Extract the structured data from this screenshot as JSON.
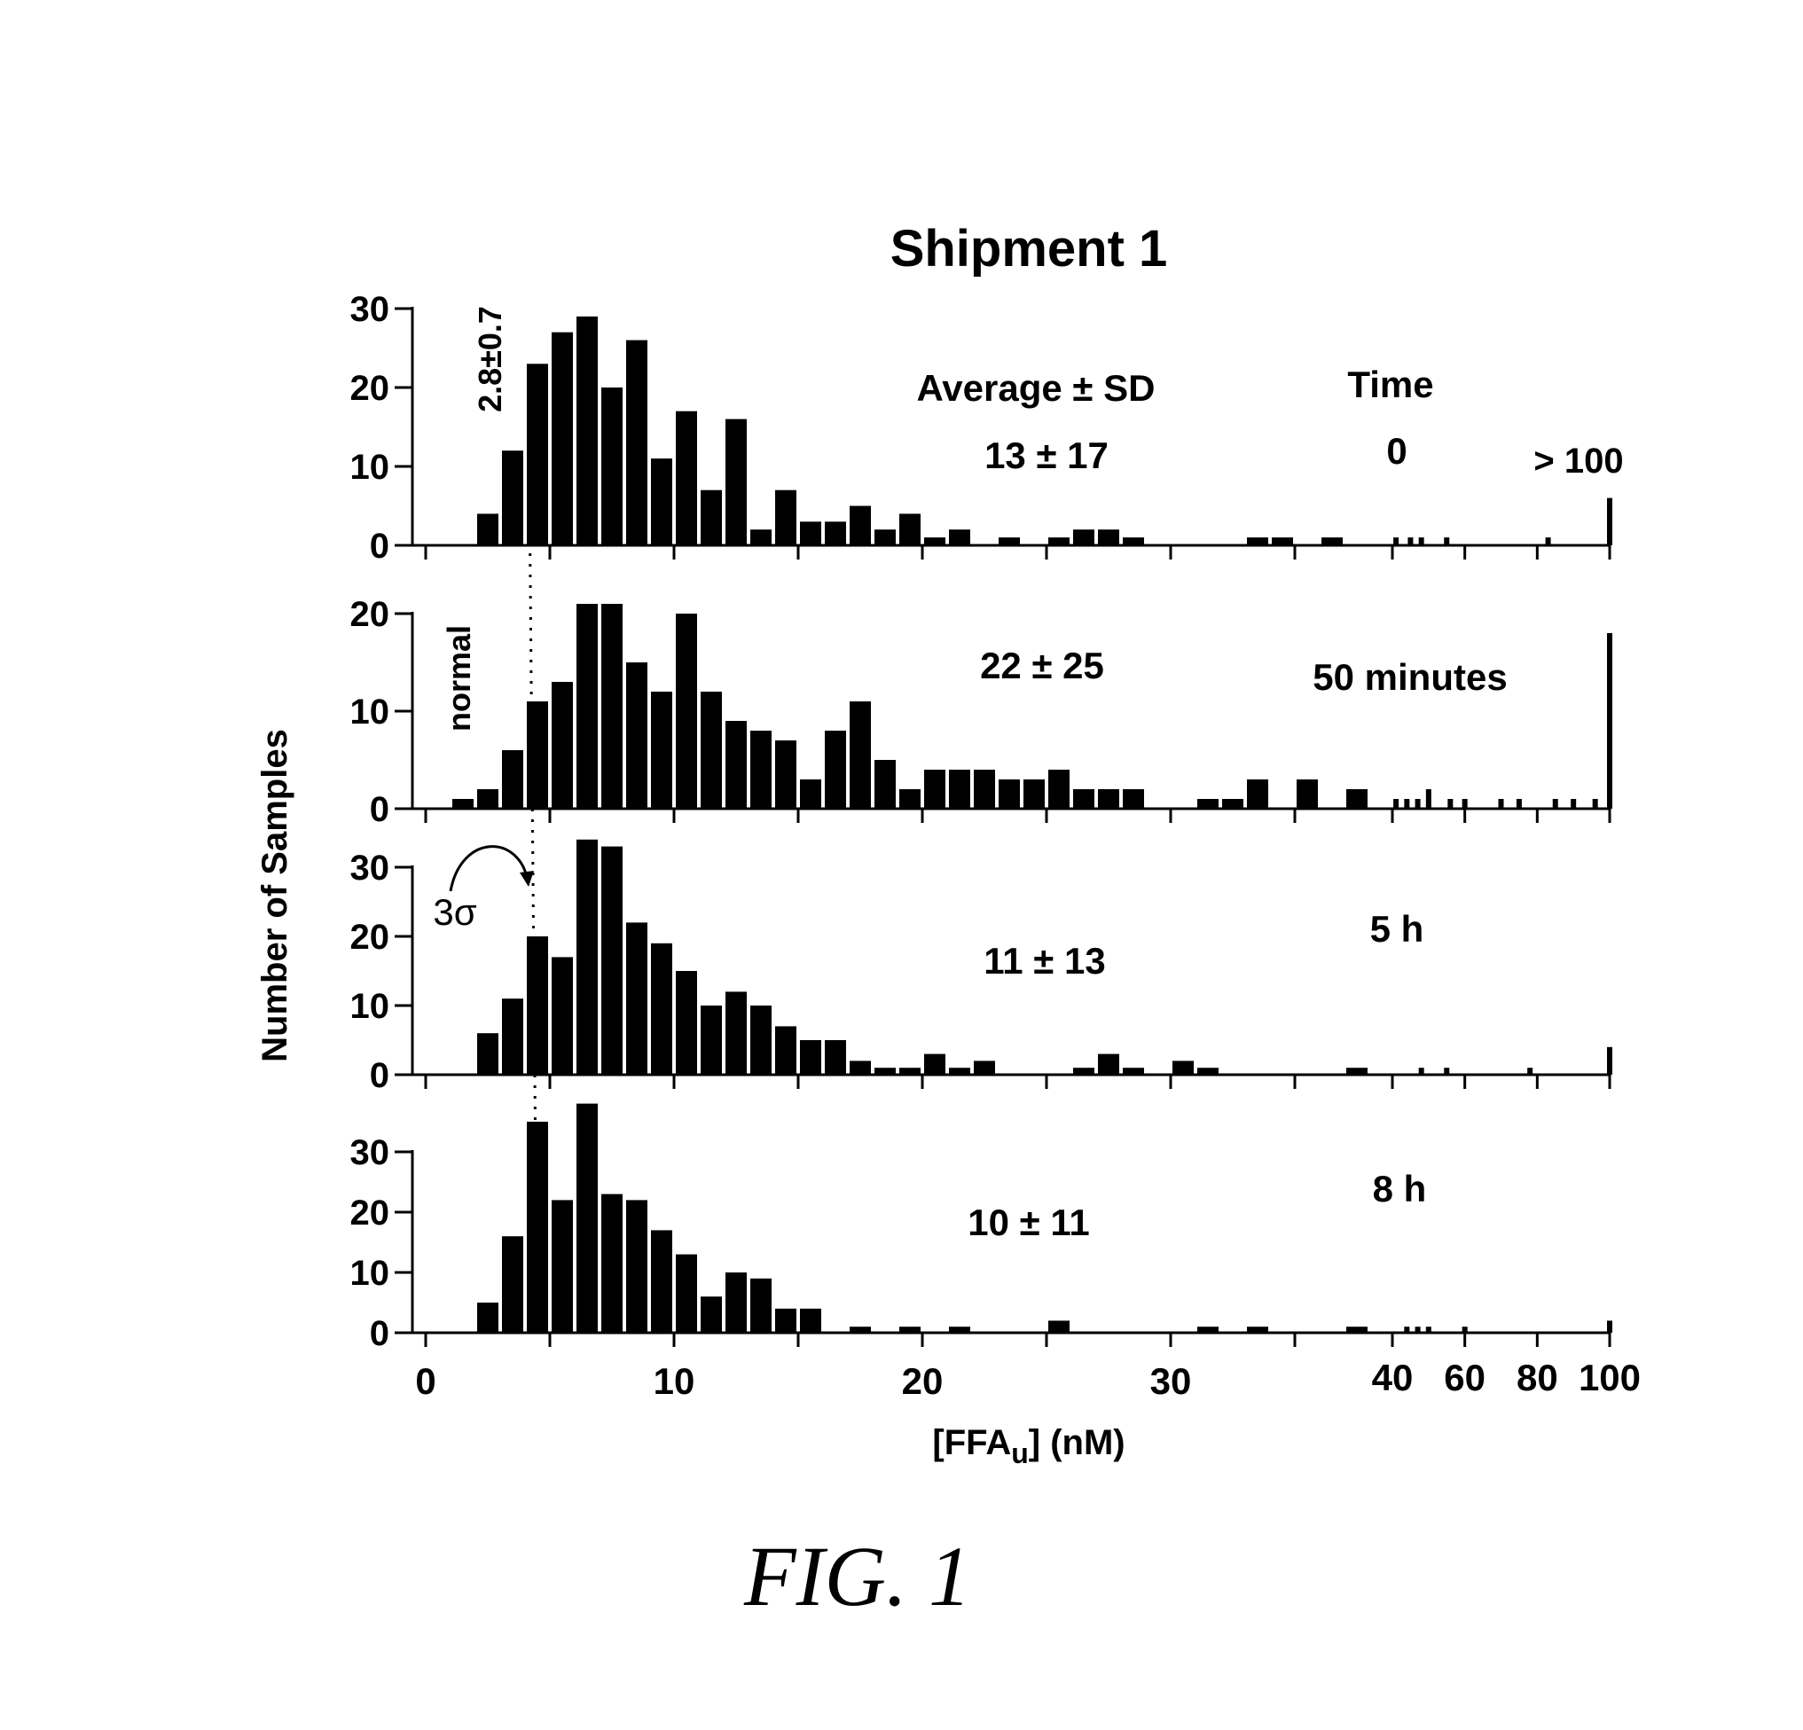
{
  "chart_data": {
    "type": "bar",
    "title": "Shipment 1",
    "ylabel": "Number of Samples",
    "xlabel": "[FFA",
    "xlabel_subscript": "u",
    "xlabel_suffix": "] (nM)",
    "x_ticks_linear": [
      "0",
      "10",
      "20",
      "30"
    ],
    "x_ticks_broken": [
      "40",
      "60",
      "80",
      "100"
    ],
    "x_scale_note": "broken axis: linear 0-40 nM, compressed 40-100 nM",
    "header_average": "Average ± SD",
    "header_time": "Time",
    "label_over_100": "> 100",
    "normal_range_label": "2.8±0.7",
    "normal_label": "normal",
    "sigma_label": "3σ",
    "normal_cutoff_x": 4.2,
    "grid": false,
    "panels": [
      {
        "time": "0",
        "stat": "13 ± 17",
        "ylim": [
          0,
          30
        ],
        "yticks": [
          "0",
          "10",
          "20",
          "30"
        ],
        "bins": [
          {
            "x": 2.5,
            "v": 4
          },
          {
            "x": 3.5,
            "v": 12
          },
          {
            "x": 4.5,
            "v": 23
          },
          {
            "x": 5.5,
            "v": 27
          },
          {
            "x": 6.5,
            "v": 29
          },
          {
            "x": 7.5,
            "v": 20
          },
          {
            "x": 8.5,
            "v": 26
          },
          {
            "x": 9.5,
            "v": 11
          },
          {
            "x": 10.5,
            "v": 17
          },
          {
            "x": 11.5,
            "v": 7
          },
          {
            "x": 12.5,
            "v": 16
          },
          {
            "x": 13.5,
            "v": 2
          },
          {
            "x": 14.5,
            "v": 7
          },
          {
            "x": 15.5,
            "v": 3
          },
          {
            "x": 16.5,
            "v": 3
          },
          {
            "x": 17.5,
            "v": 5
          },
          {
            "x": 18.5,
            "v": 2
          },
          {
            "x": 19.5,
            "v": 4
          },
          {
            "x": 20.5,
            "v": 1
          },
          {
            "x": 21.5,
            "v": 2
          },
          {
            "x": 23.5,
            "v": 1
          },
          {
            "x": 25.5,
            "v": 1
          },
          {
            "x": 26.5,
            "v": 2
          },
          {
            "x": 27.5,
            "v": 2
          },
          {
            "x": 28.5,
            "v": 1
          },
          {
            "x": 33.5,
            "v": 1
          },
          {
            "x": 34.5,
            "v": 1
          },
          {
            "x": 36.5,
            "v": 1
          }
        ],
        "tail": [
          {
            "x": 41,
            "v": 1
          },
          {
            "x": 45,
            "v": 1
          },
          {
            "x": 48,
            "v": 1
          },
          {
            "x": 55,
            "v": 1
          },
          {
            "x": 83,
            "v": 1
          },
          {
            "x": 100,
            "v": 6
          }
        ]
      },
      {
        "time": "50 minutes",
        "stat": "22 ± 25",
        "ylim": [
          0,
          20
        ],
        "yticks": [
          "0",
          "10",
          "20"
        ],
        "bins": [
          {
            "x": 1.5,
            "v": 1
          },
          {
            "x": 2.5,
            "v": 2
          },
          {
            "x": 3.5,
            "v": 6
          },
          {
            "x": 4.5,
            "v": 11
          },
          {
            "x": 5.5,
            "v": 13
          },
          {
            "x": 6.5,
            "v": 21
          },
          {
            "x": 7.5,
            "v": 21
          },
          {
            "x": 8.5,
            "v": 15
          },
          {
            "x": 9.5,
            "v": 12
          },
          {
            "x": 10.5,
            "v": 20
          },
          {
            "x": 11.5,
            "v": 12
          },
          {
            "x": 12.5,
            "v": 9
          },
          {
            "x": 13.5,
            "v": 8
          },
          {
            "x": 14.5,
            "v": 7
          },
          {
            "x": 15.5,
            "v": 3
          },
          {
            "x": 16.5,
            "v": 8
          },
          {
            "x": 17.5,
            "v": 11
          },
          {
            "x": 18.5,
            "v": 5
          },
          {
            "x": 19.5,
            "v": 2
          },
          {
            "x": 20.5,
            "v": 4
          },
          {
            "x": 21.5,
            "v": 4
          },
          {
            "x": 22.5,
            "v": 4
          },
          {
            "x": 23.5,
            "v": 3
          },
          {
            "x": 24.5,
            "v": 3
          },
          {
            "x": 25.5,
            "v": 4
          },
          {
            "x": 26.5,
            "v": 2
          },
          {
            "x": 27.5,
            "v": 2
          },
          {
            "x": 28.5,
            "v": 2
          },
          {
            "x": 31.5,
            "v": 1
          },
          {
            "x": 32.5,
            "v": 1
          },
          {
            "x": 33.5,
            "v": 3
          },
          {
            "x": 35.5,
            "v": 3
          },
          {
            "x": 37.5,
            "v": 2
          }
        ],
        "tail": [
          {
            "x": 41,
            "v": 1
          },
          {
            "x": 44,
            "v": 1
          },
          {
            "x": 47,
            "v": 1
          },
          {
            "x": 50,
            "v": 2
          },
          {
            "x": 56,
            "v": 1
          },
          {
            "x": 60,
            "v": 1
          },
          {
            "x": 70,
            "v": 1
          },
          {
            "x": 75,
            "v": 1
          },
          {
            "x": 85,
            "v": 1
          },
          {
            "x": 90,
            "v": 1
          },
          {
            "x": 96,
            "v": 1
          },
          {
            "x": 100,
            "v": 18
          }
        ]
      },
      {
        "time": "5 h",
        "stat": "11 ± 13",
        "ylim": [
          0,
          30
        ],
        "yticks": [
          "0",
          "10",
          "20",
          "30"
        ],
        "bins": [
          {
            "x": 2.5,
            "v": 6
          },
          {
            "x": 3.5,
            "v": 11
          },
          {
            "x": 4.5,
            "v": 20
          },
          {
            "x": 5.5,
            "v": 17
          },
          {
            "x": 6.5,
            "v": 34
          },
          {
            "x": 7.5,
            "v": 33
          },
          {
            "x": 8.5,
            "v": 22
          },
          {
            "x": 9.5,
            "v": 19
          },
          {
            "x": 10.5,
            "v": 15
          },
          {
            "x": 11.5,
            "v": 10
          },
          {
            "x": 12.5,
            "v": 12
          },
          {
            "x": 13.5,
            "v": 10
          },
          {
            "x": 14.5,
            "v": 7
          },
          {
            "x": 15.5,
            "v": 5
          },
          {
            "x": 16.5,
            "v": 5
          },
          {
            "x": 17.5,
            "v": 2
          },
          {
            "x": 18.5,
            "v": 1
          },
          {
            "x": 19.5,
            "v": 1
          },
          {
            "x": 20.5,
            "v": 3
          },
          {
            "x": 21.5,
            "v": 1
          },
          {
            "x": 22.5,
            "v": 2
          },
          {
            "x": 26.5,
            "v": 1
          },
          {
            "x": 27.5,
            "v": 3
          },
          {
            "x": 28.5,
            "v": 1
          },
          {
            "x": 30.5,
            "v": 2
          },
          {
            "x": 31.5,
            "v": 1
          },
          {
            "x": 37.5,
            "v": 1
          }
        ],
        "tail": [
          {
            "x": 48,
            "v": 1
          },
          {
            "x": 55,
            "v": 1
          },
          {
            "x": 78,
            "v": 1
          },
          {
            "x": 100,
            "v": 4
          }
        ]
      },
      {
        "time": "8 h",
        "stat": "10 ± 11",
        "ylim": [
          0,
          30
        ],
        "yticks": [
          "0",
          "10",
          "20",
          "30"
        ],
        "bins": [
          {
            "x": 2.5,
            "v": 5
          },
          {
            "x": 3.5,
            "v": 16
          },
          {
            "x": 4.5,
            "v": 35
          },
          {
            "x": 5.5,
            "v": 22
          },
          {
            "x": 6.5,
            "v": 38
          },
          {
            "x": 7.5,
            "v": 23
          },
          {
            "x": 8.5,
            "v": 22
          },
          {
            "x": 9.5,
            "v": 17
          },
          {
            "x": 10.5,
            "v": 13
          },
          {
            "x": 11.5,
            "v": 6
          },
          {
            "x": 12.5,
            "v": 10
          },
          {
            "x": 13.5,
            "v": 9
          },
          {
            "x": 14.5,
            "v": 4
          },
          {
            "x": 15.5,
            "v": 4
          },
          {
            "x": 17.5,
            "v": 1
          },
          {
            "x": 19.5,
            "v": 1
          },
          {
            "x": 21.5,
            "v": 1
          },
          {
            "x": 25.5,
            "v": 2
          },
          {
            "x": 31.5,
            "v": 1
          },
          {
            "x": 33.5,
            "v": 1
          },
          {
            "x": 37.5,
            "v": 1
          }
        ],
        "tail": [
          {
            "x": 44,
            "v": 1
          },
          {
            "x": 47,
            "v": 1
          },
          {
            "x": 50,
            "v": 1
          },
          {
            "x": 60,
            "v": 1
          },
          {
            "x": 100,
            "v": 2
          }
        ]
      }
    ]
  },
  "figure_caption": "FIG. 1"
}
